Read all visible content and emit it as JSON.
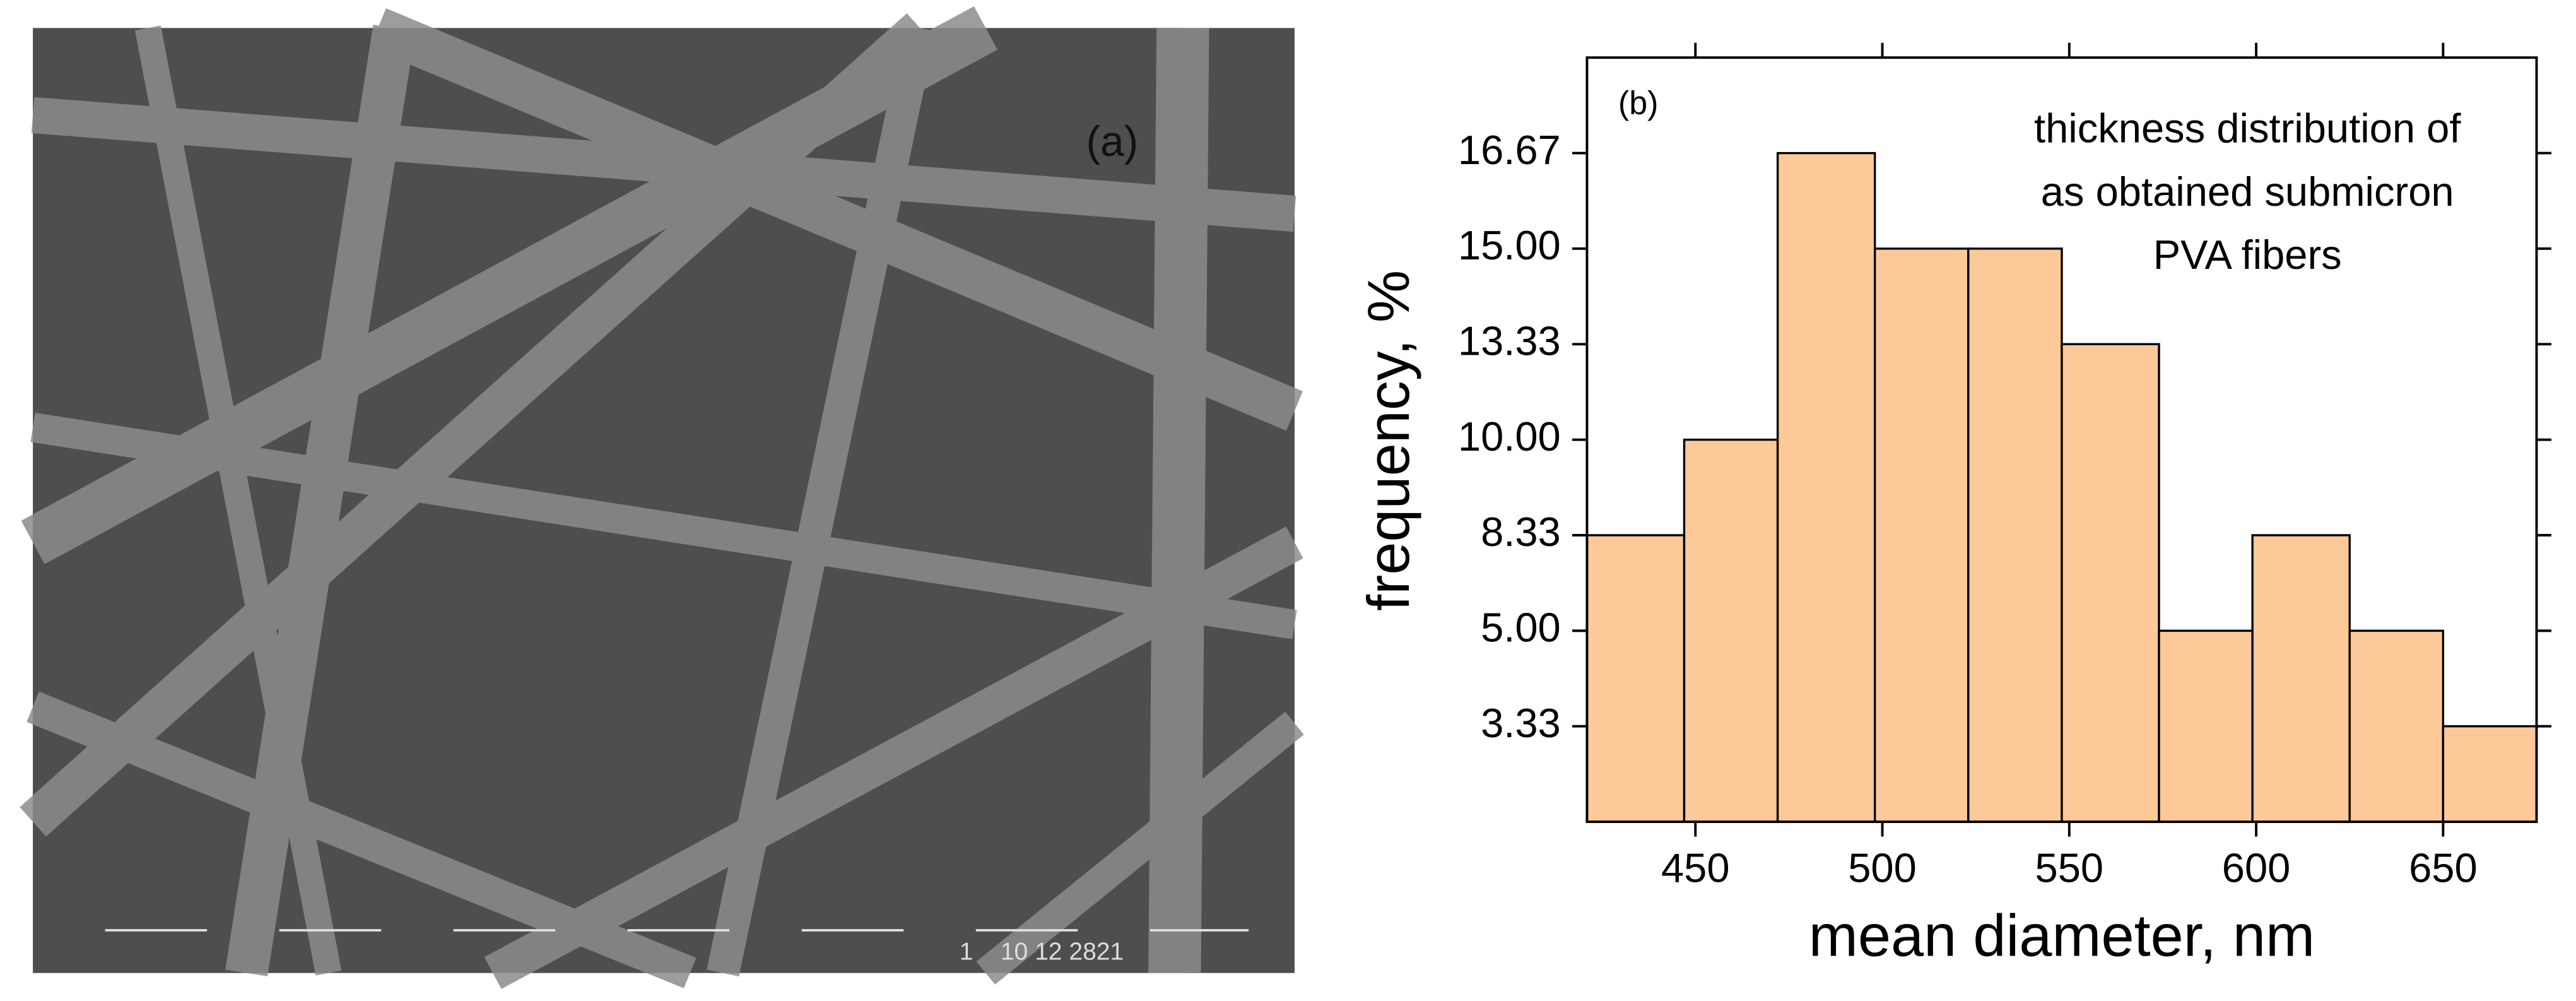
{
  "panel_a": {
    "label": "(a)",
    "footer": "1    10 12 2821"
  },
  "chart_data": {
    "type": "histogram",
    "panel_label": "(b)",
    "annotation": [
      "thickness distribution of",
      "as obtained submicron",
      "PVA fibers"
    ],
    "xlabel": "mean diameter, nm",
    "ylabel": "frequency, %",
    "bins": [
      421,
      447,
      472,
      498,
      523,
      548,
      574,
      599,
      625,
      650,
      675
    ],
    "values": [
      8.33,
      10,
      16.67,
      15,
      15,
      13.33,
      5,
      8.33,
      5,
      3.33
    ],
    "color": "#fdc998",
    "xlim": [
      421,
      675
    ],
    "xticks": [
      450,
      500,
      550,
      600,
      650
    ],
    "ylim": [
      1.67,
      18.33
    ],
    "yticks": [
      {
        "value": 3.33,
        "label": "3.33"
      },
      {
        "value": 5,
        "label": "5.00"
      },
      {
        "value": 8.33,
        "label": "8.33"
      },
      {
        "value": 10,
        "label": "10.00"
      },
      {
        "value": 13.33,
        "label": "13.33"
      },
      {
        "value": 15,
        "label": "15.00"
      },
      {
        "value": 16.67,
        "label": "16.67"
      }
    ],
    "grid": false
  }
}
